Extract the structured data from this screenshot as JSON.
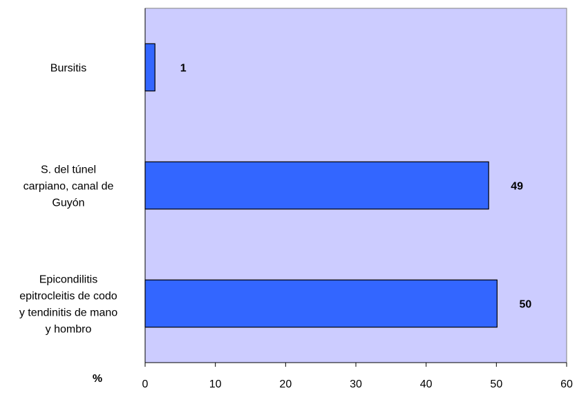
{
  "chart_data": {
    "type": "bar",
    "orientation": "horizontal",
    "categories": [
      [
        "Bursitis"
      ],
      [
        "S. del túnel",
        "carpiano, canal de",
        "Guyón"
      ],
      [
        "Epicondilitis",
        "epitrocleitis de codo",
        "y tendinitis de mano",
        "y hombro"
      ]
    ],
    "values": [
      1.4,
      48.9,
      50.1
    ],
    "data_labels": [
      "1",
      "49",
      "50"
    ],
    "xlabel": "%",
    "xlim": [
      0,
      60
    ],
    "xticks": [
      "0",
      "10",
      "20",
      "30",
      "40",
      "50",
      "60"
    ],
    "grid": false,
    "legend": "none",
    "colors": {
      "plot_background": "#ccccff",
      "bar_fill": "#3366ff",
      "bar_stroke": "#000000"
    }
  }
}
